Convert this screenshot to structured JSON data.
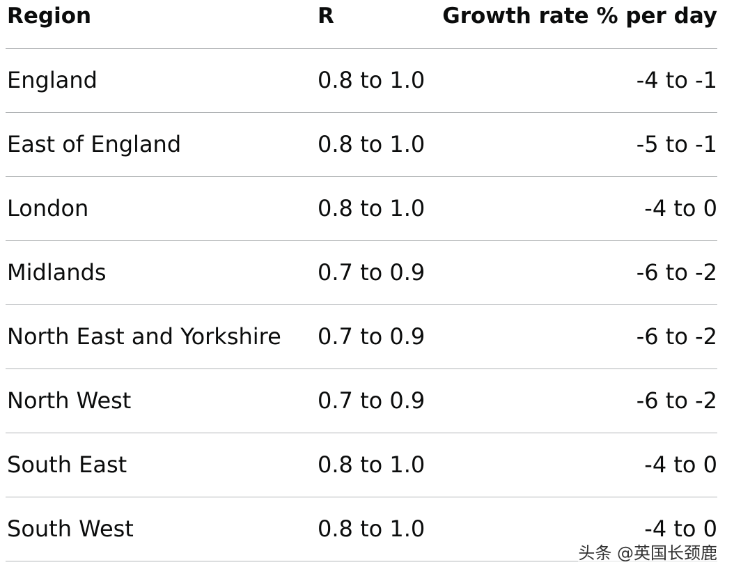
{
  "table": {
    "header": [
      "Region",
      "R",
      "Growth rate % per day"
    ],
    "rows": [
      [
        "England",
        "0.8 to 1.0",
        "-4 to -1"
      ],
      [
        "East of England",
        "0.8 to 1.0",
        "-5 to -1"
      ],
      [
        "London",
        "0.8 to 1.0",
        "-4 to 0"
      ],
      [
        "Midlands",
        "0.7 to 0.9",
        "-6 to -2"
      ],
      [
        "North East and Yorkshire",
        "0.7 to 0.9",
        "-6 to -2"
      ],
      [
        "North West",
        "0.7 to 0.9",
        "-6 to -2"
      ],
      [
        "South East",
        "0.8 to 1.0",
        "-4 to 0"
      ],
      [
        "South West",
        "0.8 to 1.0",
        "-4 to 0"
      ]
    ]
  },
  "watermark": "头条 @英国长颈鹿"
}
